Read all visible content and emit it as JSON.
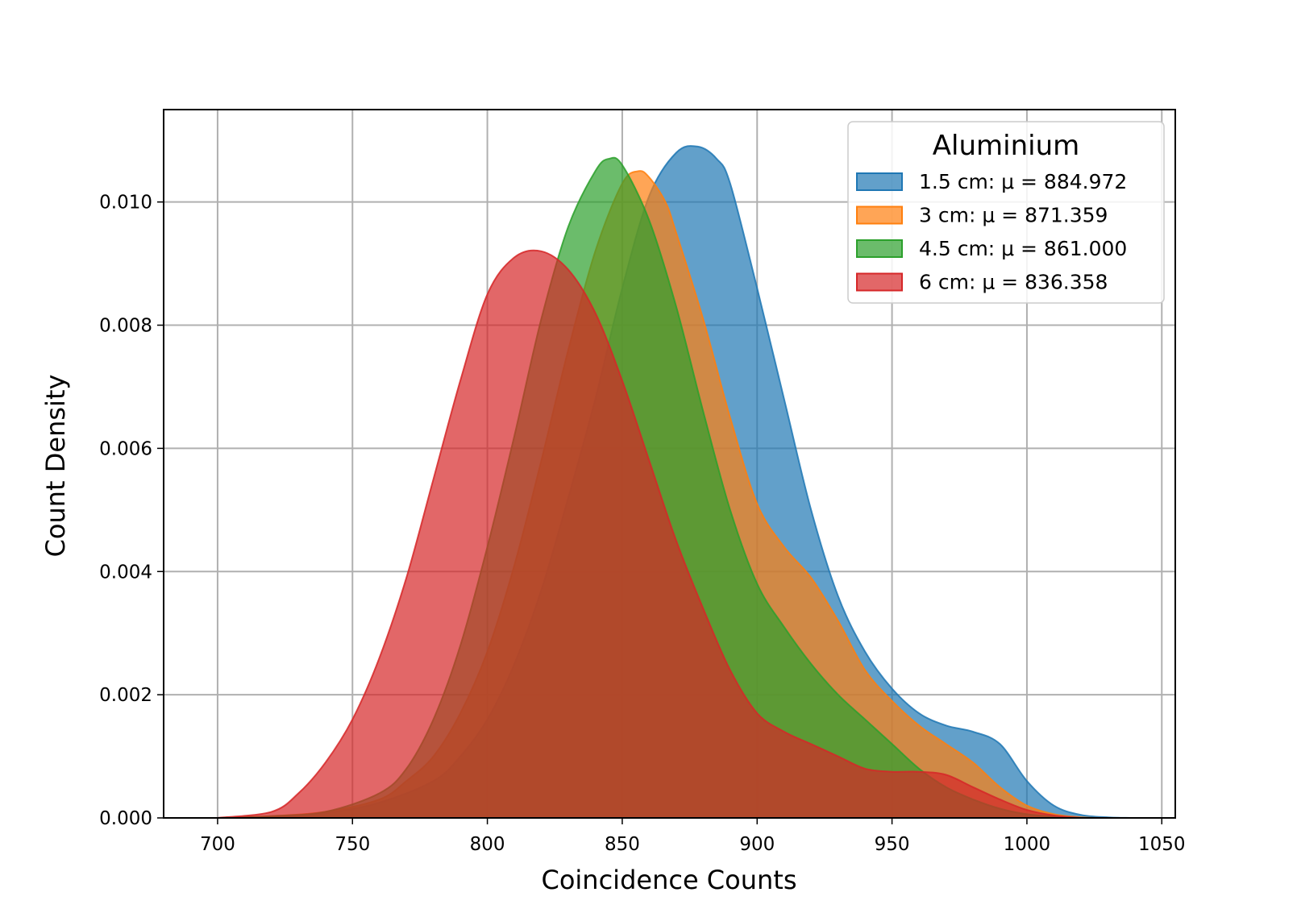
{
  "chart_data": {
    "type": "area",
    "title": "",
    "xlabel": "Coincidence Counts",
    "ylabel": "Count Density",
    "xlim": [
      680,
      1055
    ],
    "ylim": [
      0,
      0.0115
    ],
    "xticks": [
      700,
      750,
      800,
      850,
      900,
      950,
      1000,
      1050
    ],
    "xtick_labels": [
      "700",
      "750",
      "800",
      "850",
      "900",
      "950",
      "1000",
      "1050"
    ],
    "yticks": [
      0,
      0.002,
      0.004,
      0.006,
      0.008,
      0.01
    ],
    "ytick_labels": [
      "0.000",
      "0.002",
      "0.004",
      "0.006",
      "0.008",
      "0.010"
    ],
    "grid": true,
    "legend": {
      "title": "Aluminium",
      "position": "top-right"
    },
    "series": [
      {
        "name": "1.5 cm: μ = 884.972",
        "color": "#1f77b4",
        "x": [
          700,
          720,
          740,
          760,
          780,
          790,
          800,
          810,
          820,
          830,
          840,
          850,
          860,
          870,
          878,
          885,
          890,
          900,
          910,
          920,
          930,
          940,
          950,
          960,
          970,
          980,
          990,
          1000,
          1010,
          1020,
          1030,
          1040
        ],
        "y": [
          0.0,
          2e-05,
          8e-05,
          0.00025,
          0.0006,
          0.001,
          0.0016,
          0.0025,
          0.0037,
          0.0052,
          0.0068,
          0.0086,
          0.0101,
          0.0108,
          0.0109,
          0.0107,
          0.0103,
          0.0086,
          0.0068,
          0.005,
          0.0036,
          0.0027,
          0.0021,
          0.0017,
          0.0015,
          0.0014,
          0.0012,
          0.0006,
          0.0002,
          5e-05,
          1e-05,
          0.0
        ]
      },
      {
        "name": "3 cm: μ = 871.359",
        "color": "#ff7f0e",
        "x": [
          700,
          720,
          740,
          760,
          770,
          780,
          790,
          800,
          810,
          820,
          830,
          840,
          850,
          856,
          860,
          866,
          870,
          880,
          890,
          900,
          910,
          920,
          930,
          940,
          950,
          960,
          970,
          980,
          990,
          1000,
          1010,
          1020,
          1030
        ],
        "y": [
          0.0,
          3e-05,
          0.0001,
          0.0003,
          0.0006,
          0.001,
          0.0017,
          0.0027,
          0.0041,
          0.0058,
          0.0076,
          0.0092,
          0.0103,
          0.0105,
          0.0104,
          0.01,
          0.0095,
          0.0081,
          0.0065,
          0.0051,
          0.0044,
          0.0039,
          0.0032,
          0.0024,
          0.0019,
          0.0015,
          0.0012,
          0.0009,
          0.0005,
          0.0002,
          6e-05,
          1e-05,
          0.0
        ]
      },
      {
        "name": "4.5 cm: μ = 861.000",
        "color": "#2ca02c",
        "x": [
          700,
          720,
          740,
          760,
          770,
          780,
          790,
          800,
          810,
          820,
          830,
          840,
          845,
          850,
          860,
          870,
          880,
          890,
          900,
          910,
          920,
          930,
          940,
          950,
          960,
          970,
          980,
          990,
          1000,
          1010,
          1020
        ],
        "y": [
          0.0,
          3e-05,
          0.0001,
          0.0004,
          0.0008,
          0.0016,
          0.0028,
          0.0044,
          0.0062,
          0.0081,
          0.0096,
          0.0105,
          0.0107,
          0.0106,
          0.0097,
          0.0083,
          0.0066,
          0.005,
          0.0038,
          0.0031,
          0.0025,
          0.002,
          0.0016,
          0.0012,
          0.0008,
          0.0005,
          0.0003,
          0.00015,
          6e-05,
          2e-05,
          0.0
        ]
      },
      {
        "name": "6 cm: μ = 836.358",
        "color": "#d62728",
        "x": [
          700,
          720,
          730,
          740,
          750,
          760,
          770,
          780,
          790,
          800,
          810,
          820,
          830,
          840,
          850,
          860,
          870,
          880,
          890,
          900,
          910,
          920,
          930,
          940,
          950,
          960,
          970,
          980,
          990,
          1000,
          1010,
          1020
        ],
        "y": [
          0.0,
          0.0001,
          0.0004,
          0.0009,
          0.0016,
          0.0026,
          0.0039,
          0.0055,
          0.0071,
          0.0085,
          0.0091,
          0.0092,
          0.0089,
          0.0082,
          0.0071,
          0.0058,
          0.0045,
          0.0034,
          0.0024,
          0.0017,
          0.0014,
          0.0012,
          0.001,
          0.0008,
          0.00075,
          0.00075,
          0.0007,
          0.0005,
          0.0003,
          0.00013,
          4e-05,
          0.0
        ]
      }
    ]
  }
}
